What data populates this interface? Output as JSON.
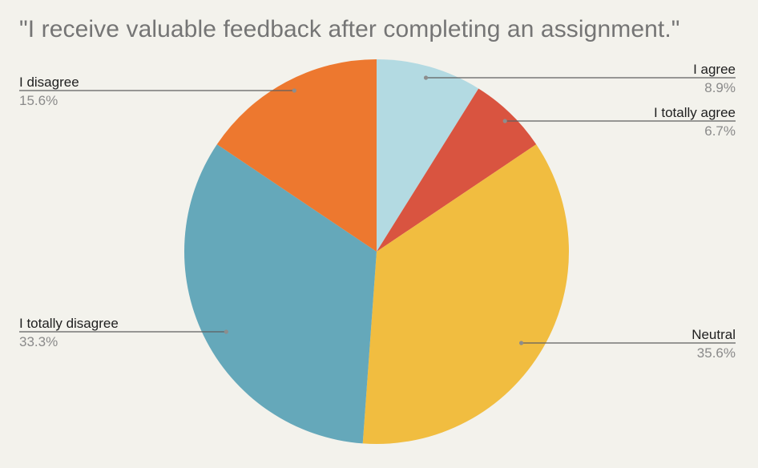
{
  "chart_data": {
    "type": "pie",
    "title": "\"I receive valuable feedback after completing an assignment.\"",
    "slices": [
      {
        "label": "I agree",
        "value": 8.9,
        "value_label": "8.9%",
        "color": "#b3dae2"
      },
      {
        "label": "I totally agree",
        "value": 6.7,
        "value_label": "6.7%",
        "color": "#d95440"
      },
      {
        "label": "Neutral",
        "value": 35.6,
        "value_label": "35.6%",
        "color": "#f1bd40"
      },
      {
        "label": "I totally disagree",
        "value": 33.3,
        "value_label": "33.3%",
        "color": "#65a8ba"
      },
      {
        "label": "I disagree",
        "value": 15.6,
        "value_label": "15.6%",
        "color": "#ed782f"
      }
    ],
    "start_angle": "top",
    "direction": "clockwise"
  },
  "colors": {
    "background": "#f3f2ec",
    "title": "#757575",
    "label": "#1f1f1f",
    "percent": "#8a8a8a",
    "leader": "#5f5f5f"
  }
}
